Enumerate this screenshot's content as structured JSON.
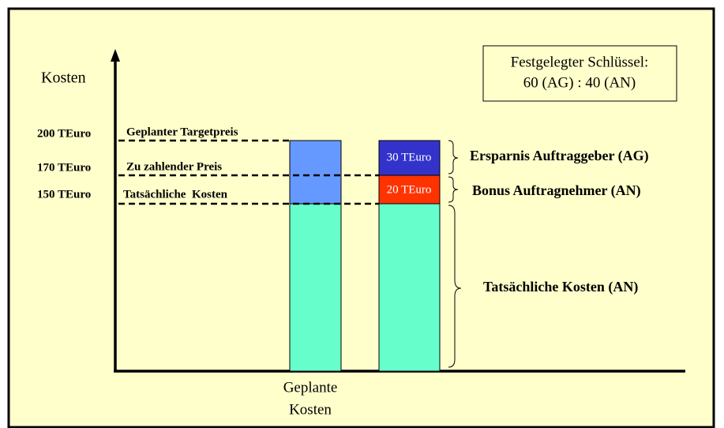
{
  "y_axis_label": "Kosten",
  "key_box": {
    "line1": "Festgelegter Schlüssel:",
    "line2": "60 (AG) : 40 (AN)"
  },
  "levels": [
    {
      "amount": "200 TEuro",
      "label": "Geplanter Targetpreis"
    },
    {
      "amount": "170 TEuro",
      "label": "Zu zahlender Preis"
    },
    {
      "amount": "150 TEuro",
      "label": "Tatsächliche  Kosten"
    }
  ],
  "segments": {
    "savings": "30 TEuro",
    "bonus": "20 TEuro"
  },
  "braces": [
    "Ersparnis Auftraggeber (AG)",
    "Bonus Auftragnehmer (AN)",
    "Tatsächliche Kosten (AN)"
  ],
  "bar_label": [
    "Geplante",
    "Kosten"
  ]
}
